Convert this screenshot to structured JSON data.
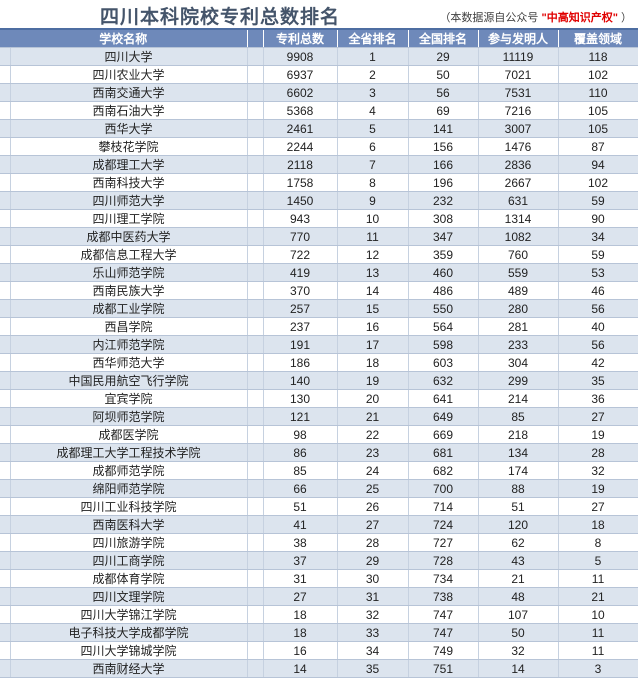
{
  "chart_data": {
    "type": "table",
    "title": "四川本科院校专利总数排名",
    "columns": [
      "学校名称",
      "专利总数",
      "全省排名",
      "全国排名",
      "参与发明人",
      "覆盖领域"
    ],
    "rows": [
      [
        "四川大学",
        "9908",
        "1",
        "29",
        "11119",
        "118"
      ],
      [
        "四川农业大学",
        "6937",
        "2",
        "50",
        "7021",
        "102"
      ],
      [
        "西南交通大学",
        "6602",
        "3",
        "56",
        "7531",
        "110"
      ],
      [
        "西南石油大学",
        "5368",
        "4",
        "69",
        "7216",
        "105"
      ],
      [
        "西华大学",
        "2461",
        "5",
        "141",
        "3007",
        "105"
      ],
      [
        "攀枝花学院",
        "2244",
        "6",
        "156",
        "1476",
        "87"
      ],
      [
        "成都理工大学",
        "2118",
        "7",
        "166",
        "2836",
        "94"
      ],
      [
        "西南科技大学",
        "1758",
        "8",
        "196",
        "2667",
        "102"
      ],
      [
        "四川师范大学",
        "1450",
        "9",
        "232",
        "631",
        "59"
      ],
      [
        "四川理工学院",
        "943",
        "10",
        "308",
        "1314",
        "90"
      ],
      [
        "成都中医药大学",
        "770",
        "11",
        "347",
        "1082",
        "34"
      ],
      [
        "成都信息工程大学",
        "722",
        "12",
        "359",
        "760",
        "59"
      ],
      [
        "乐山师范学院",
        "419",
        "13",
        "460",
        "559",
        "53"
      ],
      [
        "西南民族大学",
        "370",
        "14",
        "486",
        "489",
        "46"
      ],
      [
        "成都工业学院",
        "257",
        "15",
        "550",
        "280",
        "56"
      ],
      [
        "西昌学院",
        "237",
        "16",
        "564",
        "281",
        "40"
      ],
      [
        "内江师范学院",
        "191",
        "17",
        "598",
        "233",
        "56"
      ],
      [
        "西华师范大学",
        "186",
        "18",
        "603",
        "304",
        "42"
      ],
      [
        "中国民用航空飞行学院",
        "140",
        "19",
        "632",
        "299",
        "35"
      ],
      [
        "宜宾学院",
        "130",
        "20",
        "641",
        "214",
        "36"
      ],
      [
        "阿坝师范学院",
        "121",
        "21",
        "649",
        "85",
        "27"
      ],
      [
        "成都医学院",
        "98",
        "22",
        "669",
        "218",
        "19"
      ],
      [
        "成都理工大学工程技术学院",
        "86",
        "23",
        "681",
        "134",
        "28"
      ],
      [
        "成都师范学院",
        "85",
        "24",
        "682",
        "174",
        "32"
      ],
      [
        "绵阳师范学院",
        "66",
        "25",
        "700",
        "88",
        "19"
      ],
      [
        "四川工业科技学院",
        "51",
        "26",
        "714",
        "51",
        "27"
      ],
      [
        "西南医科大学",
        "41",
        "27",
        "724",
        "120",
        "18"
      ],
      [
        "四川旅游学院",
        "38",
        "28",
        "727",
        "62",
        "8"
      ],
      [
        "四川工商学院",
        "37",
        "29",
        "728",
        "43",
        "5"
      ],
      [
        "成都体育学院",
        "31",
        "30",
        "734",
        "21",
        "11"
      ],
      [
        "四川文理学院",
        "27",
        "31",
        "738",
        "48",
        "21"
      ],
      [
        "四川大学锦江学院",
        "18",
        "32",
        "747",
        "107",
        "10"
      ],
      [
        "电子科技大学成都学院",
        "18",
        "33",
        "747",
        "50",
        "11"
      ],
      [
        "四川大学锦城学院",
        "16",
        "34",
        "749",
        "32",
        "11"
      ],
      [
        "西南财经大学",
        "14",
        "35",
        "751",
        "14",
        "3"
      ]
    ]
  },
  "source_note": {
    "prefix": "（本数据源自公众号 ",
    "highlight": "\"中高知识产权\"",
    "suffix": " ）"
  },
  "colors": {
    "header_bg": "#6e89ba",
    "header_top": "#4d6da1",
    "row_alt_bg": "#dce4ee",
    "title_color": "#44546a",
    "note_color": "#3f3f3f",
    "highlight_red": "#e00000"
  }
}
